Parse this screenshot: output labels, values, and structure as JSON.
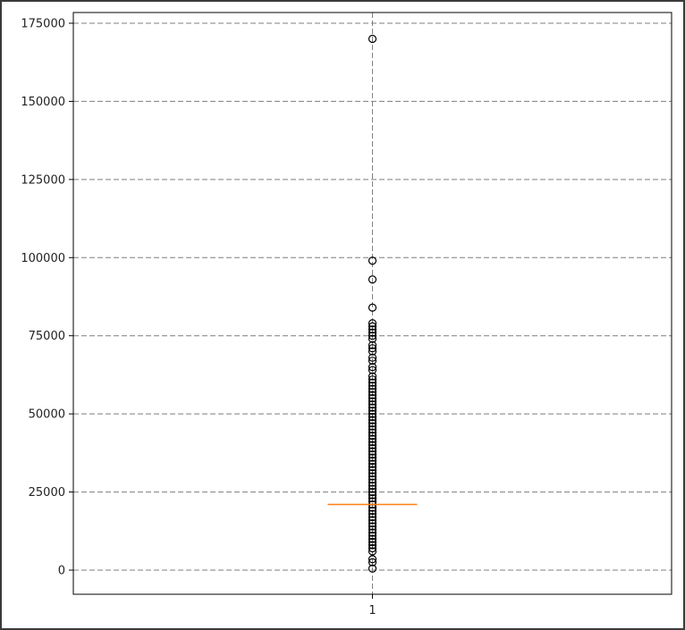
{
  "chart_data": {
    "type": "box",
    "title": "",
    "xlabel": "",
    "ylabel": "",
    "categories": [
      "1"
    ],
    "ylim": [
      -7500,
      175000
    ],
    "yticks": [
      0,
      25000,
      50000,
      75000,
      100000,
      125000,
      150000,
      175000
    ],
    "ytick_labels": [
      "0",
      "25000",
      "50000",
      "75000",
      "100000",
      "125000",
      "150000",
      "175000"
    ],
    "grid": true,
    "series": [
      {
        "median": 21000,
        "box_color": "#000000",
        "median_color": "#ff7f0e",
        "outliers": [
          170000,
          99000,
          93000,
          84000,
          79000,
          78000,
          77000,
          76000,
          75000,
          74000,
          72000,
          71000,
          70000,
          68000,
          67000,
          65000,
          64000,
          62000,
          61000,
          60000,
          59000,
          58000,
          57000,
          56000,
          55000,
          54000,
          53000,
          52000,
          51000,
          50000,
          49000,
          48000,
          47000,
          46000,
          45000,
          44000,
          43000,
          42000,
          41000,
          40000,
          39000,
          38000,
          37000,
          36000,
          35000,
          34000,
          33000,
          32000,
          31000,
          30000,
          29000,
          28000,
          27000,
          26000,
          25000,
          24000,
          23000,
          22000,
          21000,
          20000,
          19000,
          18000,
          17000,
          16000,
          15000,
          14000,
          13000,
          12000,
          11000,
          10000,
          9000,
          8000,
          7000,
          6000,
          3500,
          2500,
          500
        ]
      }
    ]
  }
}
